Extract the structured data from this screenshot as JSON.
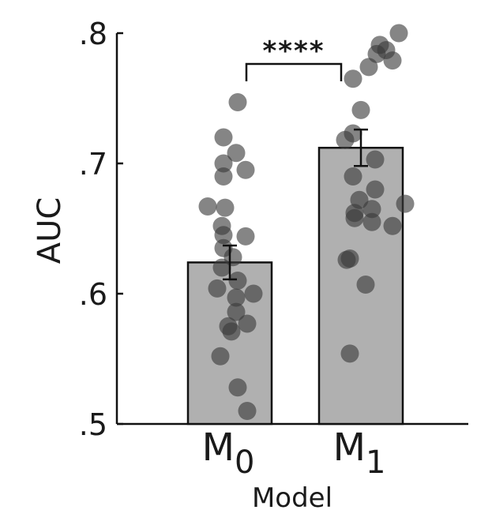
{
  "chart_data": {
    "type": "bar",
    "title": "",
    "xlabel": "Model",
    "ylabel": "AUC",
    "ylim": [
      0.5,
      0.8
    ],
    "yticks": [
      0.5,
      0.6,
      0.7,
      0.8
    ],
    "ytick_labels": [
      ".5",
      ".6",
      ".7",
      ".8"
    ],
    "categories": [
      {
        "base": "M",
        "sub": "0"
      },
      {
        "base": "M",
        "sub": "1"
      }
    ],
    "values": [
      0.624,
      0.712
    ],
    "error": [
      0.013,
      0.014
    ],
    "significance": {
      "between": [
        0,
        1
      ],
      "label": "****"
    },
    "points": [
      [
        0.747,
        0.72,
        0.708,
        0.7,
        0.695,
        0.69,
        0.667,
        0.666,
        0.652,
        0.645,
        0.644,
        0.635,
        0.628,
        0.62,
        0.61,
        0.604,
        0.6,
        0.597,
        0.586,
        0.577,
        0.575,
        0.571,
        0.552,
        0.528,
        0.51
      ],
      [
        0.8,
        0.791,
        0.787,
        0.784,
        0.779,
        0.774,
        0.765,
        0.741,
        0.723,
        0.718,
        0.703,
        0.69,
        0.68,
        0.672,
        0.669,
        0.665,
        0.662,
        0.658,
        0.655,
        0.652,
        0.627,
        0.626,
        0.607,
        0.554
      ]
    ],
    "colors": {
      "bar": "#b0b0b0",
      "bar_edge": "#111111",
      "point": "#3a3a3a",
      "axis": "#111111"
    }
  }
}
